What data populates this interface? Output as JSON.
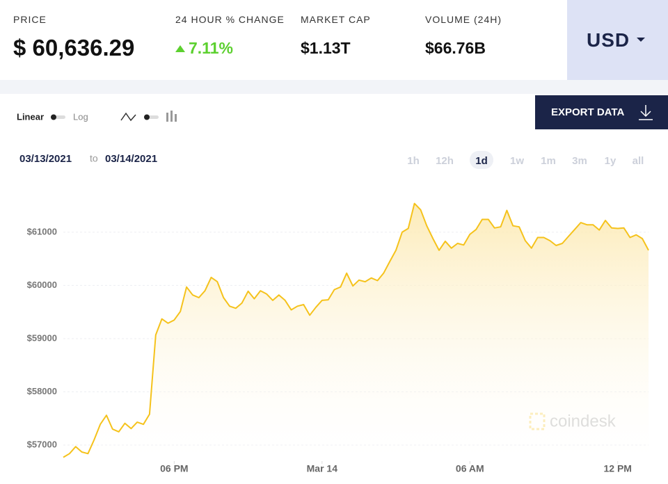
{
  "stats": [
    {
      "label": "PRICE",
      "value": "$ 60,636.29"
    },
    {
      "label": "24 HOUR % CHANGE",
      "value": "7.11%"
    },
    {
      "label": "MARKET CAP",
      "value": "$1.13T"
    },
    {
      "label": "VOLUME (24H)",
      "value": "$66.76B"
    }
  ],
  "currency": "USD",
  "scale_toggle": {
    "left": "Linear",
    "right": "Log"
  },
  "export_button": "EXPORT DATA",
  "date_range": {
    "from": "03/13/2021",
    "sep": "to",
    "to": "03/14/2021"
  },
  "ranges": [
    "1h",
    "12h",
    "1d",
    "1w",
    "1m",
    "3m",
    "1y",
    "all"
  ],
  "selected_range": 2,
  "watermark": "coindesk",
  "chart_data": {
    "type": "area",
    "color": "#f5c21b",
    "x": [
      13.5,
      13.75,
      14,
      14.25,
      14.5,
      14.75,
      15,
      15.25,
      15.5,
      15.75,
      16,
      16.25,
      16.5,
      16.75,
      17,
      17.25,
      17.5,
      17.75,
      18,
      18.25,
      18.5,
      18.75,
      19,
      19.25,
      19.5,
      19.75,
      20,
      20.25,
      20.5,
      20.75,
      21,
      21.25,
      21.5,
      21.75,
      22,
      22.25,
      22.5,
      22.75,
      23,
      23.25,
      23.5,
      23.75,
      24,
      24.25,
      24.5,
      24.75,
      25,
      25.25,
      25.5,
      25.75,
      26,
      26.25,
      26.5,
      26.75,
      27,
      27.25,
      27.5,
      27.75,
      28,
      28.25,
      28.5,
      28.75,
      29,
      29.25,
      29.5,
      29.75,
      30,
      30.25,
      30.5,
      30.75,
      31,
      31.25,
      31.5,
      31.75,
      32,
      32.25,
      32.5,
      32.75,
      33,
      33.25,
      33.5,
      33.75,
      34,
      34.25,
      34.5,
      34.75,
      35,
      35.25,
      35.5,
      35.75,
      36,
      36.25,
      36.5,
      36.75,
      37,
      37.25
    ],
    "values": [
      56770,
      56840,
      56970,
      56870,
      56840,
      57100,
      57390,
      57560,
      57300,
      57250,
      57410,
      57310,
      57430,
      57390,
      57580,
      59070,
      59370,
      59290,
      59350,
      59510,
      59970,
      59820,
      59770,
      59900,
      60150,
      60070,
      59770,
      59610,
      59570,
      59670,
      59890,
      59750,
      59900,
      59840,
      59720,
      59820,
      59720,
      59540,
      59610,
      59640,
      59440,
      59590,
      59720,
      59730,
      59920,
      59970,
      60230,
      59990,
      60100,
      60070,
      60140,
      60090,
      60230,
      60450,
      60660,
      61000,
      61070,
      61540,
      61420,
      61120,
      60880,
      60660,
      60830,
      60700,
      60790,
      60760,
      60960,
      61050,
      61240,
      61240,
      61080,
      61100,
      61410,
      61120,
      61100,
      60840,
      60700,
      60900,
      60900,
      60840,
      60750,
      60790,
      60920,
      61050,
      61180,
      61140,
      61140,
      61040,
      61220,
      61080,
      61070,
      61080,
      60900,
      60950,
      60880,
      60660
    ],
    "xlim": [
      13.5,
      37.25
    ],
    "xticks": [
      {
        "value": 18,
        "label": "06 PM"
      },
      {
        "value": 24,
        "label": "Mar 14"
      },
      {
        "value": 30,
        "label": "06 AM"
      },
      {
        "value": 36,
        "label": "12 PM"
      }
    ],
    "ylim": [
      56700,
      61900
    ],
    "yticks": [
      {
        "value": 57000,
        "label": "$57000"
      },
      {
        "value": 58000,
        "label": "$58000"
      },
      {
        "value": 59000,
        "label": "$59000"
      },
      {
        "value": 60000,
        "label": "$60000"
      },
      {
        "value": 61000,
        "label": "$61000"
      }
    ],
    "grid": true
  }
}
